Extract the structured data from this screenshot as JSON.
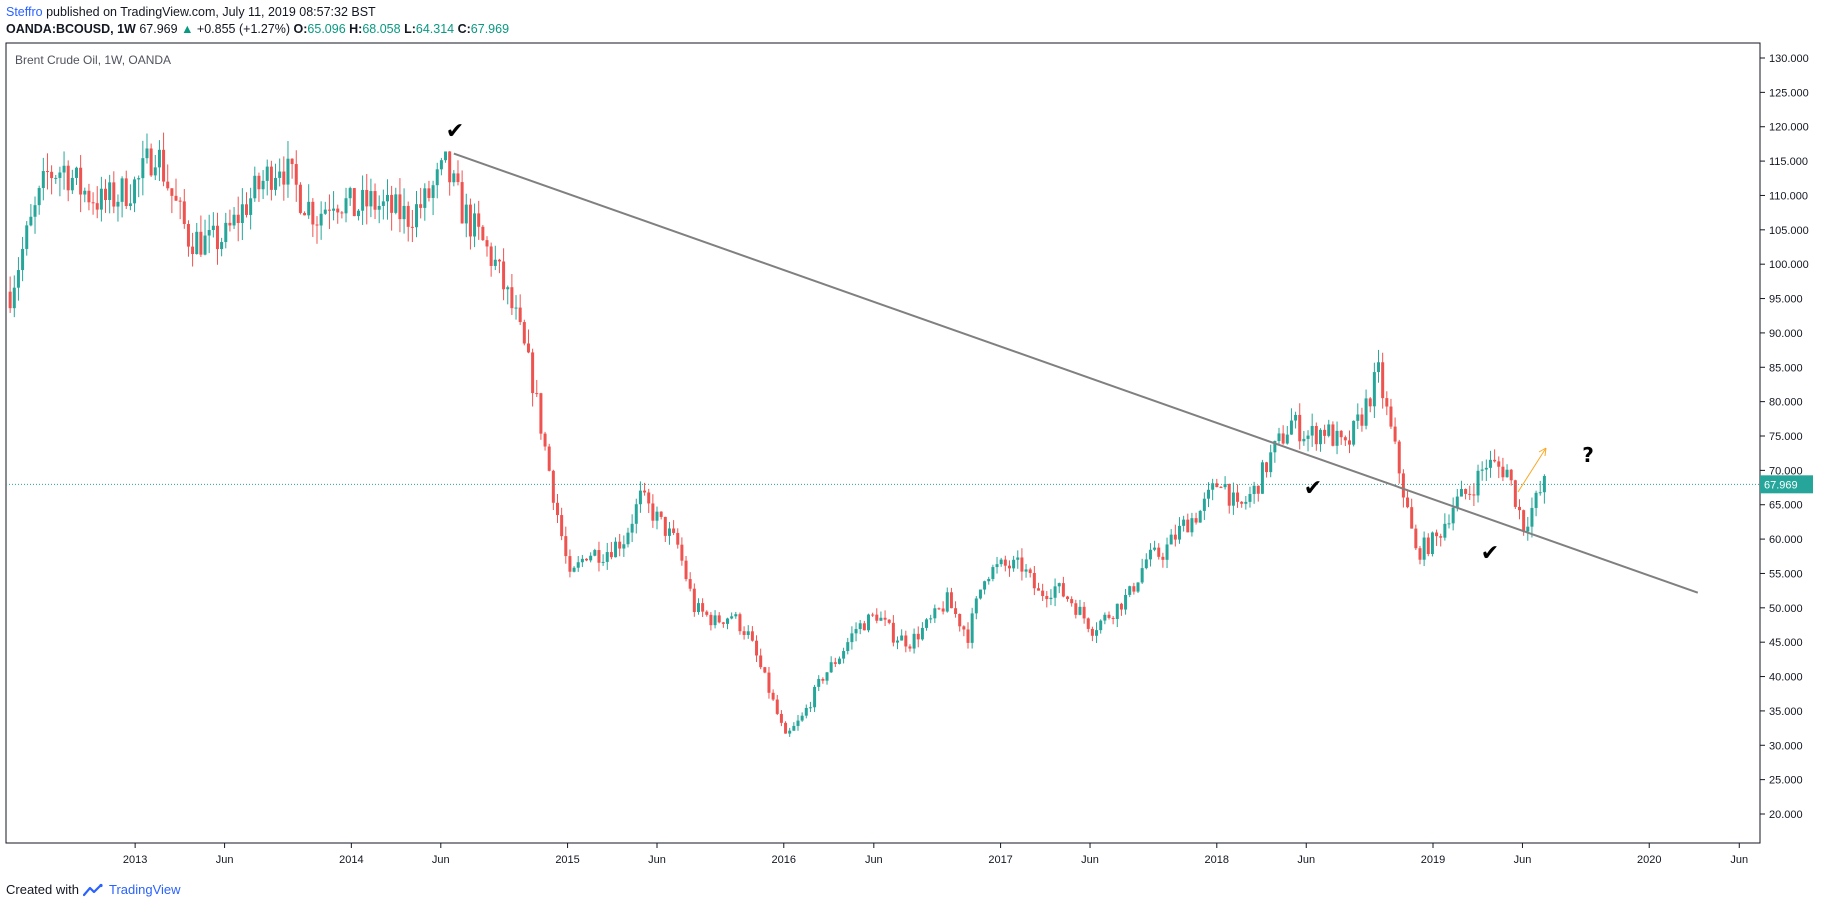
{
  "header": {
    "author": "Steffro",
    "published_text": " published on TradingView.com, July 11, 2019 08:57:32 BST",
    "symbol": "OANDA:BCOUSD, 1W",
    "last": "67.969",
    "change_arrow": "▲",
    "change": "+0.855 (+1.27%)",
    "o_label": "O:",
    "o_value": "65.096",
    "h_label": "H:",
    "h_value": "68.058",
    "l_label": "L:",
    "l_value": "64.314",
    "c_label": "C:",
    "c_value": "67.969"
  },
  "footer": {
    "created_with": "Created with",
    "brand": "TradingView"
  },
  "colors": {
    "up": "#26a69a",
    "down": "#ef5350",
    "trendline": "#808080",
    "price_line": "#26a69a",
    "arrow": "#f9a825"
  },
  "chart_data": {
    "type": "candlestick",
    "title": "Brent Crude Oil, 1W, OANDA",
    "timeframe": "1W",
    "ylim": [
      20,
      130
    ],
    "y_ticks": [
      "130.000",
      "125.000",
      "120.000",
      "115.000",
      "110.000",
      "105.000",
      "100.000",
      "95.000",
      "90.000",
      "85.000",
      "80.000",
      "75.000",
      "70.000",
      "65.000",
      "60.000",
      "55.000",
      "50.000",
      "45.000",
      "40.000",
      "35.000",
      "30.000",
      "25.000",
      "20.000"
    ],
    "x_ticks": [
      "2013",
      "Jun",
      "2014",
      "Jun",
      "2015",
      "Jun",
      "2016",
      "Jun",
      "2017",
      "Jun",
      "2018",
      "Jun",
      "2019",
      "Jun",
      "2020",
      "Jun"
    ],
    "x_tick_dates": [
      "2013-01-01",
      "2013-06-01",
      "2014-01-01",
      "2014-06-01",
      "2015-01-01",
      "2015-06-01",
      "2016-01-01",
      "2016-06-01",
      "2017-01-01",
      "2017-06-01",
      "2018-01-01",
      "2018-06-01",
      "2019-01-01",
      "2019-06-01",
      "2020-01-01",
      "2020-06-01"
    ],
    "x_range": [
      "2012-05-28",
      "2020-07-06"
    ],
    "last_price": 67.969,
    "last_price_label": "67.969",
    "weekly_close_series": [
      [
        "2012-06-04",
        96
      ],
      [
        "2012-07-02",
        104
      ],
      [
        "2012-08-06",
        113
      ],
      [
        "2012-09-03",
        114
      ],
      [
        "2012-10-01",
        111
      ],
      [
        "2012-11-05",
        109
      ],
      [
        "2012-12-03",
        110
      ],
      [
        "2013-01-07",
        112
      ],
      [
        "2013-02-04",
        117
      ],
      [
        "2013-03-04",
        110
      ],
      [
        "2013-04-01",
        104
      ],
      [
        "2013-05-06",
        103
      ],
      [
        "2013-06-03",
        104
      ],
      [
        "2013-07-01",
        108
      ],
      [
        "2013-08-05",
        112
      ],
      [
        "2013-09-02",
        115
      ],
      [
        "2013-10-07",
        110
      ],
      [
        "2013-11-04",
        107
      ],
      [
        "2013-12-02",
        110
      ],
      [
        "2014-01-06",
        108
      ],
      [
        "2014-02-03",
        109
      ],
      [
        "2014-03-03",
        108
      ],
      [
        "2014-04-07",
        107
      ],
      [
        "2014-05-05",
        109
      ],
      [
        "2014-06-09",
        114
      ],
      [
        "2014-07-07",
        108
      ],
      [
        "2014-08-04",
        104
      ],
      [
        "2014-09-01",
        100
      ],
      [
        "2014-10-06",
        92
      ],
      [
        "2014-11-03",
        83
      ],
      [
        "2014-12-01",
        70
      ],
      [
        "2015-01-05",
        54
      ],
      [
        "2015-02-02",
        58
      ],
      [
        "2015-03-02",
        58
      ],
      [
        "2015-04-06",
        60
      ],
      [
        "2015-05-04",
        66
      ],
      [
        "2015-06-01",
        63
      ],
      [
        "2015-07-06",
        59
      ],
      [
        "2015-08-03",
        50
      ],
      [
        "2015-09-07",
        48
      ],
      [
        "2015-10-05",
        49
      ],
      [
        "2015-11-02",
        46
      ],
      [
        "2015-12-07",
        38
      ],
      [
        "2016-01-04",
        31
      ],
      [
        "2016-02-01",
        34
      ],
      [
        "2016-03-07",
        40
      ],
      [
        "2016-04-04",
        43
      ],
      [
        "2016-05-02",
        47
      ],
      [
        "2016-06-06",
        49
      ],
      [
        "2016-07-04",
        46
      ],
      [
        "2016-08-01",
        45
      ],
      [
        "2016-09-05",
        48
      ],
      [
        "2016-10-03",
        51
      ],
      [
        "2016-11-07",
        46
      ],
      [
        "2016-12-05",
        55
      ],
      [
        "2017-01-02",
        56
      ],
      [
        "2017-02-06",
        56
      ],
      [
        "2017-03-06",
        52
      ],
      [
        "2017-04-03",
        53
      ],
      [
        "2017-05-01",
        51
      ],
      [
        "2017-06-05",
        47
      ],
      [
        "2017-07-03",
        49
      ],
      [
        "2017-08-07",
        52
      ],
      [
        "2017-09-04",
        57
      ],
      [
        "2017-10-02",
        58
      ],
      [
        "2017-11-06",
        62
      ],
      [
        "2017-12-04",
        64
      ],
      [
        "2018-01-08",
        69
      ],
      [
        "2018-02-05",
        64
      ],
      [
        "2018-03-05",
        67
      ],
      [
        "2018-04-02",
        72
      ],
      [
        "2018-05-07",
        77
      ],
      [
        "2018-06-04",
        75
      ],
      [
        "2018-07-02",
        76
      ],
      [
        "2018-08-06",
        73
      ],
      [
        "2018-09-03",
        78
      ],
      [
        "2018-10-01",
        84
      ],
      [
        "2018-11-05",
        70
      ],
      [
        "2018-12-03",
        58
      ],
      [
        "2019-01-07",
        60
      ],
      [
        "2019-02-04",
        65
      ],
      [
        "2019-03-04",
        67
      ],
      [
        "2019-04-01",
        71
      ],
      [
        "2019-05-06",
        70
      ],
      [
        "2019-06-03",
        62
      ],
      [
        "2019-07-08",
        67.969
      ]
    ],
    "trendline": [
      [
        "2014-06-23",
        116.1
      ],
      [
        "2020-03-23",
        52.2
      ]
    ],
    "annotations": [
      "✔",
      "✔",
      "✔",
      "?"
    ]
  }
}
